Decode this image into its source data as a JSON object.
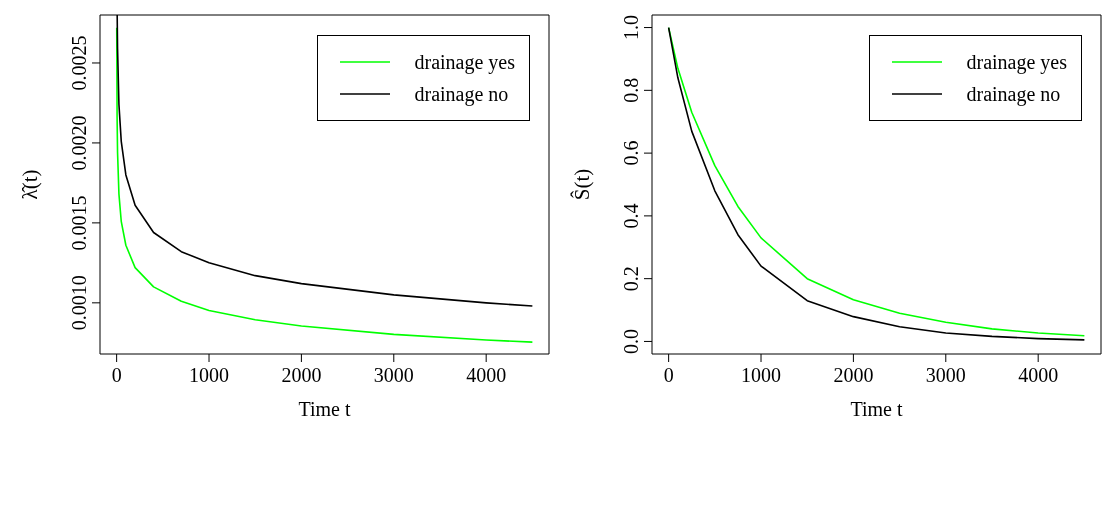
{
  "chart_data": [
    {
      "type": "line",
      "xlabel": "Time t",
      "ylabel": "λ̂(t)",
      "xlim": [
        -180,
        4680
      ],
      "ylim": [
        0.00068,
        0.0028
      ],
      "xticks": [
        0,
        1000,
        2000,
        3000,
        4000
      ],
      "yticks": [
        {
          "value": 0.001,
          "label": "0.0010"
        },
        {
          "value": 0.0015,
          "label": "0.0015"
        },
        {
          "value": 0.002,
          "label": "0.0020"
        },
        {
          "value": 0.0025,
          "label": "0.0025"
        }
      ],
      "legend": "top right",
      "marker": "none",
      "line_style": "solid",
      "series": [
        {
          "name": "drainage yes",
          "color": "#00ff00",
          "x": [
            1.2,
            5,
            10,
            25,
            50,
            100,
            200,
            400,
            700,
            1000,
            1500,
            2000,
            3000,
            4000,
            4500
          ],
          "values": [
            0.00272,
            0.00216,
            0.00194,
            0.00168,
            0.00151,
            0.00136,
            0.00122,
            0.0011,
            0.00101,
            0.000952,
            0.000894,
            0.000855,
            0.000803,
            0.000768,
            0.000754
          ]
        },
        {
          "name": "drainage no",
          "color": "#000000",
          "x": [
            6,
            10,
            25,
            50,
            100,
            200,
            400,
            700,
            1000,
            1500,
            2000,
            3000,
            4000,
            4500
          ],
          "values": [
            0.0028,
            0.00259,
            0.00224,
            0.00201,
            0.0018,
            0.00161,
            0.00144,
            0.00132,
            0.00125,
            0.00117,
            0.00112,
            0.00105,
            0.001,
            0.00098
          ]
        }
      ]
    },
    {
      "type": "line",
      "xlabel": "Time t",
      "ylabel": "Ŝ(t)",
      "xlim": [
        -180,
        4680
      ],
      "ylim": [
        -0.04,
        1.04
      ],
      "xticks": [
        0,
        1000,
        2000,
        3000,
        4000
      ],
      "yticks": [
        {
          "value": 0,
          "label": "0.0"
        },
        {
          "value": 0.2,
          "label": "0.2"
        },
        {
          "value": 0.4,
          "label": "0.4"
        },
        {
          "value": 0.6,
          "label": "0.6"
        },
        {
          "value": 0.8,
          "label": "0.8"
        },
        {
          "value": 1,
          "label": "1.0"
        }
      ],
      "legend": "top right",
      "marker": "none",
      "line_style": "solid",
      "series": [
        {
          "name": "drainage yes",
          "color": "#00ff00",
          "x": [
            0,
            100,
            250,
            500,
            750,
            1000,
            1500,
            2000,
            2500,
            3000,
            3500,
            4000,
            4500
          ],
          "values": [
            1.0,
            0.87,
            0.73,
            0.56,
            0.43,
            0.33,
            0.2,
            0.133,
            0.09,
            0.061,
            0.04,
            0.027,
            0.018
          ]
        },
        {
          "name": "drainage no",
          "color": "#000000",
          "x": [
            0,
            100,
            250,
            500,
            750,
            1000,
            1500,
            2000,
            2500,
            3000,
            3500,
            4000,
            4500
          ],
          "values": [
            1.0,
            0.84,
            0.67,
            0.48,
            0.34,
            0.24,
            0.13,
            0.079,
            0.047,
            0.027,
            0.016,
            0.009,
            0.005
          ]
        }
      ]
    }
  ]
}
